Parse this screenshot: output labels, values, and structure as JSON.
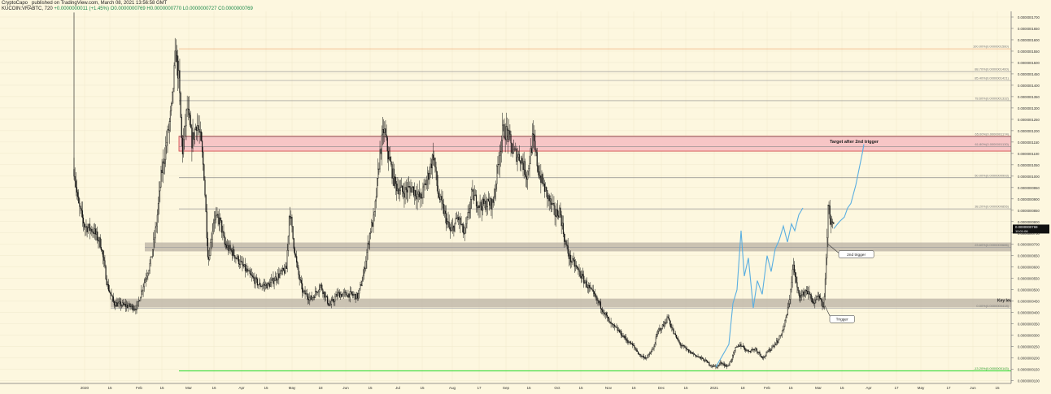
{
  "header": {
    "publisher_line": "CryptoCapo_ published on TradingView.com, March 08, 2021 13:56:58 GMT",
    "symbol": "KUCOIN:VRABTC, 720",
    "ohlc_text": "O0.0000000769  H0.0000000770  L0.0000000727  C0.0000000769",
    "change_text": "+0.0000000011 (+1.45%)"
  },
  "colors": {
    "background": "#fdf7df",
    "candle": "#111111",
    "grid": "#efe8cc",
    "fib_line": "#8a8a8a",
    "support_band": "#b9b2a4",
    "target_band": "#f7c6c6",
    "target_border": "#d04040",
    "projection": "#5aaee0",
    "green_line": "#3ddc3d",
    "price_tag": "#111111"
  },
  "chart_data": {
    "type": "candlestick",
    "title": "",
    "y_scale": "linear",
    "ylim": [
      9.5e-09,
      1.725e-07
    ],
    "y_ticks": [
      "0.0000001700",
      "0.0000001650",
      "0.0000001600",
      "0.0000001550",
      "0.0000001500",
      "0.0000001450",
      "0.0000001400",
      "0.0000001350",
      "0.0000001300",
      "0.0000001250",
      "0.0000001200",
      "0.0000001150",
      "0.0000001100",
      "0.0000001050",
      "0.0000001000",
      "0.0000000950",
      "0.0000000900",
      "0.0000000850",
      "0.0000000800",
      "0.0000000750",
      "0.0000000700",
      "0.0000000650",
      "0.0000000600",
      "0.0000000550",
      "0.0000000500",
      "0.0000000450",
      "0.0000000400",
      "0.0000000350",
      "0.0000000300",
      "0.0000000250",
      "0.0000000200",
      "0.0000000150",
      "0.0000000100"
    ],
    "y_tick_values": [
      1700,
      1650,
      1600,
      1550,
      1500,
      1450,
      1400,
      1350,
      1300,
      1250,
      1200,
      1150,
      1100,
      1050,
      1000,
      950,
      900,
      850,
      800,
      750,
      700,
      650,
      600,
      550,
      500,
      450,
      400,
      350,
      300,
      250,
      200,
      150,
      100
    ],
    "y_tick_unit_note": "values x 1e-10",
    "x_range": [
      0,
      1175
    ],
    "x_ticks": [
      {
        "label": "2020",
        "x": 104
      },
      {
        "label": "15",
        "x": 135
      },
      {
        "label": "Feb",
        "x": 171
      },
      {
        "label": "15",
        "x": 199
      },
      {
        "label": "Mar",
        "x": 232
      },
      {
        "label": "16",
        "x": 263
      },
      {
        "label": "Apr",
        "x": 297
      },
      {
        "label": "15",
        "x": 327
      },
      {
        "label": "May",
        "x": 359
      },
      {
        "label": "18",
        "x": 394
      },
      {
        "label": "Jun",
        "x": 425
      },
      {
        "label": "15",
        "x": 455
      },
      {
        "label": "Jul",
        "x": 489
      },
      {
        "label": "15",
        "x": 519
      },
      {
        "label": "Aug",
        "x": 556
      },
      {
        "label": "17",
        "x": 589
      },
      {
        "label": "Sep",
        "x": 622
      },
      {
        "label": "15",
        "x": 650
      },
      {
        "label": "Oct",
        "x": 685
      },
      {
        "label": "15",
        "x": 714
      },
      {
        "label": "Nov",
        "x": 748
      },
      {
        "label": "16",
        "x": 779
      },
      {
        "label": "Dec",
        "x": 813
      },
      {
        "label": "15",
        "x": 843
      },
      {
        "label": "2021",
        "x": 878
      },
      {
        "label": "18",
        "x": 913
      },
      {
        "label": "Feb",
        "x": 943
      },
      {
        "label": "15",
        "x": 972
      },
      {
        "label": "Mar",
        "x": 1006
      },
      {
        "label": "15",
        "x": 1035
      },
      {
        "label": "Apr",
        "x": 1068
      },
      {
        "label": "17",
        "x": 1102
      },
      {
        "label": "May",
        "x": 1132
      },
      {
        "label": "17",
        "x": 1166
      },
      {
        "label": "Jun",
        "x": 1196
      },
      {
        "label": "15",
        "x": 1226
      }
    ],
    "price_path": [
      [
        91,
        1030
      ],
      [
        96,
        880
      ],
      [
        104,
        780
      ],
      [
        115,
        760
      ],
      [
        124,
        700
      ],
      [
        132,
        520
      ],
      [
        140,
        440
      ],
      [
        155,
        430
      ],
      [
        168,
        420
      ],
      [
        176,
        520
      ],
      [
        185,
        620
      ],
      [
        192,
        780
      ],
      [
        198,
        1000
      ],
      [
        204,
        1130
      ],
      [
        211,
        1300
      ],
      [
        216,
        1550
      ],
      [
        220,
        1420
      ],
      [
        224,
        1100
      ],
      [
        230,
        1300
      ],
      [
        236,
        1150
      ],
      [
        242,
        1240
      ],
      [
        247,
        1150
      ],
      [
        251,
        1000
      ],
      [
        256,
        620
      ],
      [
        263,
        820
      ],
      [
        271,
        800
      ],
      [
        276,
        700
      ],
      [
        287,
        660
      ],
      [
        297,
        610
      ],
      [
        308,
        560
      ],
      [
        319,
        520
      ],
      [
        330,
        520
      ],
      [
        341,
        560
      ],
      [
        352,
        590
      ],
      [
        356,
        860
      ],
      [
        360,
        730
      ],
      [
        366,
        580
      ],
      [
        372,
        490
      ],
      [
        383,
        460
      ],
      [
        394,
        520
      ],
      [
        405,
        430
      ],
      [
        415,
        480
      ],
      [
        430,
        480
      ],
      [
        440,
        470
      ],
      [
        447,
        570
      ],
      [
        455,
        760
      ],
      [
        460,
        820
      ],
      [
        467,
        1100
      ],
      [
        472,
        1210
      ],
      [
        478,
        1080
      ],
      [
        486,
        960
      ],
      [
        495,
        930
      ],
      [
        506,
        950
      ],
      [
        517,
        900
      ],
      [
        527,
        1010
      ],
      [
        533,
        1100
      ],
      [
        538,
        930
      ],
      [
        545,
        850
      ],
      [
        554,
        750
      ],
      [
        563,
        820
      ],
      [
        571,
        740
      ],
      [
        580,
        920
      ],
      [
        590,
        870
      ],
      [
        600,
        880
      ],
      [
        606,
        880
      ],
      [
        612,
        1050
      ],
      [
        618,
        1200
      ],
      [
        624,
        1190
      ],
      [
        630,
        1110
      ],
      [
        640,
        1080
      ],
      [
        648,
        1000
      ],
      [
        655,
        1170
      ],
      [
        662,
        1020
      ],
      [
        672,
        920
      ],
      [
        683,
        830
      ],
      [
        688,
        850
      ],
      [
        694,
        720
      ],
      [
        700,
        640
      ],
      [
        708,
        600
      ],
      [
        718,
        540
      ],
      [
        729,
        480
      ],
      [
        740,
        420
      ],
      [
        750,
        350
      ],
      [
        760,
        320
      ],
      [
        770,
        280
      ],
      [
        779,
        250
      ],
      [
        787,
        210
      ],
      [
        795,
        200
      ],
      [
        803,
        240
      ],
      [
        809,
        320
      ],
      [
        815,
        340
      ],
      [
        821,
        380
      ],
      [
        828,
        310
      ],
      [
        836,
        260
      ],
      [
        846,
        230
      ],
      [
        856,
        210
      ],
      [
        866,
        190
      ],
      [
        873,
        170
      ],
      [
        880,
        160
      ],
      [
        887,
        180
      ],
      [
        894,
        160
      ],
      [
        900,
        200
      ],
      [
        904,
        240
      ],
      [
        910,
        260
      ],
      [
        919,
        230
      ],
      [
        929,
        240
      ],
      [
        938,
        200
      ],
      [
        947,
        240
      ],
      [
        957,
        280
      ],
      [
        964,
        340
      ],
      [
        970,
        440
      ],
      [
        975,
        610
      ],
      [
        980,
        500
      ],
      [
        985,
        470
      ],
      [
        991,
        500
      ],
      [
        1001,
        440
      ],
      [
        1006,
        470
      ],
      [
        1012,
        420
      ],
      [
        1015,
        560
      ],
      [
        1018,
        880
      ],
      [
        1022,
        790
      ],
      [
        1025,
        769
      ]
    ],
    "projection_path": [
      [
        880,
        160
      ],
      [
        896,
        260
      ],
      [
        901,
        440
      ],
      [
        906,
        500
      ],
      [
        911,
        760
      ],
      [
        915,
        560
      ],
      [
        920,
        640
      ],
      [
        926,
        420
      ],
      [
        931,
        540
      ],
      [
        937,
        480
      ],
      [
        943,
        650
      ],
      [
        948,
        580
      ],
      [
        953,
        680
      ],
      [
        958,
        720
      ],
      [
        963,
        780
      ],
      [
        968,
        710
      ],
      [
        973,
        790
      ],
      [
        977,
        760
      ],
      [
        982,
        830
      ],
      [
        987,
        860
      ]
    ],
    "projection_path_2": [
      [
        1025,
        769
      ],
      [
        1032,
        800
      ],
      [
        1038,
        820
      ],
      [
        1042,
        860
      ],
      [
        1046,
        880
      ],
      [
        1052,
        960
      ],
      [
        1060,
        1100
      ],
      [
        1062,
        1140
      ]
    ],
    "fib_levels": [
      {
        "label": "100.00%(0.0000001560)",
        "value": 1560,
        "x1": 220,
        "x2": 1243,
        "color": "#f0b080"
      },
      {
        "label": "88.70%(0.0000001460)",
        "value": 1460,
        "x1": 220,
        "x2": 1243,
        "color": "#9a9a9a"
      },
      {
        "label": "85.40%(0.0000001421)",
        "value": 1421,
        "x1": 220,
        "x2": 1243,
        "color": "#9a9a9a"
      },
      {
        "label": "78.60%(0.0000001332)",
        "value": 1332,
        "x1": 220,
        "x2": 1243,
        "color": "#8a8a8a"
      },
      {
        "label": "65.00%(0.0000001174)",
        "value": 1174,
        "x1": 220,
        "x2": 1243,
        "color": "#8a8a8a"
      },
      {
        "label": "61.80%(0.0000001130)",
        "value": 1130,
        "x1": 220,
        "x2": 1243,
        "color": "#8a8a8a"
      },
      {
        "label": "50.00%(0.0000000993)",
        "value": 993,
        "x1": 220,
        "x2": 1243,
        "color": "#8a8a8a"
      },
      {
        "label": "38.20%(0.0000000856)",
        "value": 856,
        "x1": 220,
        "x2": 1243,
        "color": "#9a9a9a"
      },
      {
        "label": "23.60%(0.0000000686)",
        "value": 686,
        "x1": 178,
        "x2": 1243,
        "color": "#9a9a9a"
      },
      {
        "label": "0.00%(0.0000000418)",
        "value": 418,
        "x1": 136,
        "x2": 1243,
        "color": "#b0b0b0"
      },
      {
        "label": "-13.20%(0.0000000143)",
        "value": 143,
        "x1": 220,
        "x2": 1243,
        "color": "#3ddc3d"
      }
    ],
    "support_bands": [
      {
        "from": 669,
        "to": 708,
        "x1": 178,
        "x2": 1243
      },
      {
        "from": 422,
        "to": 461,
        "x1": 136,
        "x2": 1243
      }
    ],
    "target_zone": {
      "from": 1110,
      "to": 1176,
      "x1": 220,
      "x2": 1243,
      "label": "Target after 2nd trigger"
    },
    "key_level_label": "Key level to",
    "annotations": [
      {
        "text": "2nd trigger",
        "anchor": [
          1018,
          700
        ],
        "box": [
          1031,
          640
        ]
      },
      {
        "text": "Trigger",
        "anchor": [
          1014,
          430
        ],
        "box": [
          1020,
          355
        ]
      }
    ],
    "last_price": {
      "value": 769,
      "label": "0.0000000769",
      "countdown": "10:01:06"
    }
  }
}
